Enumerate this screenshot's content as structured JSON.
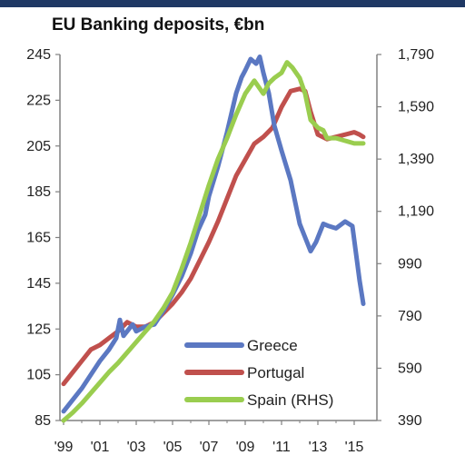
{
  "title": "EU Banking deposits, €bn",
  "colors": {
    "header_bar": "#1f3864",
    "greece": "#5b78c2",
    "portugal": "#c0504d",
    "spain": "#9acd4f",
    "axis": "#808080"
  },
  "chart_data": {
    "type": "line",
    "title": "EU Banking deposits, €bn",
    "xlabel": "",
    "ylabel": "",
    "ylabel_right": "",
    "grid": false,
    "legend_position": "bottom-center",
    "xlim": [
      1999,
      2016.3
    ],
    "ylim": [
      85,
      245
    ],
    "ylim_right": [
      390,
      1790
    ],
    "x_tick_labels": [
      "'99",
      "'01",
      "'03",
      "'05",
      "'07",
      "'09",
      "'11",
      "'13",
      "'15"
    ],
    "x_tick_values": [
      1999,
      2001,
      2003,
      2005,
      2007,
      2009,
      2011,
      2013,
      2015
    ],
    "y_left_ticks": [
      "245",
      "225",
      "205",
      "185",
      "165",
      "145",
      "125",
      "105",
      "85"
    ],
    "y_right_ticks": [
      "1,790",
      "1,590",
      "1,390",
      "1,190",
      "990",
      "790",
      "590",
      "390"
    ],
    "series": [
      {
        "name": "Greece",
        "axis": "left",
        "color": "#5b78c2",
        "points": [
          [
            1999.0,
            89
          ],
          [
            1999.5,
            94
          ],
          [
            2000.0,
            99
          ],
          [
            2000.5,
            105
          ],
          [
            2001.0,
            111
          ],
          [
            2001.5,
            116
          ],
          [
            2001.9,
            121
          ],
          [
            2002.1,
            129
          ],
          [
            2002.3,
            122
          ],
          [
            2002.8,
            127
          ],
          [
            2003.0,
            124
          ],
          [
            2003.5,
            126
          ],
          [
            2004.0,
            127
          ],
          [
            2004.5,
            133
          ],
          [
            2005.0,
            140
          ],
          [
            2005.5,
            148
          ],
          [
            2006.0,
            158
          ],
          [
            2006.4,
            168
          ],
          [
            2006.8,
            175
          ],
          [
            2007.0,
            183
          ],
          [
            2007.5,
            196
          ],
          [
            2008.0,
            211
          ],
          [
            2008.5,
            228
          ],
          [
            2008.8,
            235
          ],
          [
            2009.0,
            238
          ],
          [
            2009.3,
            243
          ],
          [
            2009.6,
            241
          ],
          [
            2009.8,
            244
          ],
          [
            2010.0,
            237
          ],
          [
            2010.3,
            228
          ],
          [
            2010.6,
            214
          ],
          [
            2011.0,
            203
          ],
          [
            2011.5,
            190
          ],
          [
            2012.0,
            171
          ],
          [
            2012.3,
            165
          ],
          [
            2012.6,
            159
          ],
          [
            2012.9,
            163
          ],
          [
            2013.3,
            171
          ],
          [
            2013.6,
            170
          ],
          [
            2014.0,
            169
          ],
          [
            2014.5,
            172
          ],
          [
            2014.9,
            170
          ],
          [
            2015.1,
            158
          ],
          [
            2015.3,
            146
          ],
          [
            2015.5,
            136
          ]
        ]
      },
      {
        "name": "Portugal",
        "axis": "left",
        "color": "#c0504d",
        "points": [
          [
            1999.0,
            101
          ],
          [
            1999.5,
            106
          ],
          [
            2000.0,
            111
          ],
          [
            2000.5,
            116
          ],
          [
            2001.0,
            118
          ],
          [
            2001.5,
            121
          ],
          [
            2002.0,
            124
          ],
          [
            2002.5,
            128
          ],
          [
            2003.0,
            126
          ],
          [
            2003.5,
            126
          ],
          [
            2004.0,
            128
          ],
          [
            2004.5,
            132
          ],
          [
            2005.0,
            136
          ],
          [
            2005.5,
            141
          ],
          [
            2006.0,
            147
          ],
          [
            2006.5,
            155
          ],
          [
            2007.0,
            163
          ],
          [
            2007.5,
            172
          ],
          [
            2008.0,
            182
          ],
          [
            2008.5,
            192
          ],
          [
            2009.0,
            199
          ],
          [
            2009.5,
            206
          ],
          [
            2010.0,
            209
          ],
          [
            2010.5,
            213
          ],
          [
            2011.0,
            222
          ],
          [
            2011.5,
            229
          ],
          [
            2012.0,
            230
          ],
          [
            2012.3,
            229
          ],
          [
            2012.6,
            220
          ],
          [
            2013.0,
            210
          ],
          [
            2013.5,
            208
          ],
          [
            2014.0,
            209
          ],
          [
            2014.5,
            210
          ],
          [
            2015.0,
            211
          ],
          [
            2015.3,
            210
          ],
          [
            2015.5,
            209
          ]
        ]
      },
      {
        "name": "Spain (RHS)",
        "axis": "right",
        "color": "#9acd4f",
        "points": [
          [
            1999.0,
            390
          ],
          [
            1999.5,
            420
          ],
          [
            2000.0,
            455
          ],
          [
            2000.5,
            495
          ],
          [
            2001.0,
            535
          ],
          [
            2001.5,
            575
          ],
          [
            2002.0,
            610
          ],
          [
            2002.5,
            650
          ],
          [
            2003.0,
            690
          ],
          [
            2003.5,
            730
          ],
          [
            2004.0,
            770
          ],
          [
            2004.5,
            820
          ],
          [
            2005.0,
            880
          ],
          [
            2005.5,
            970
          ],
          [
            2006.0,
            1070
          ],
          [
            2006.5,
            1180
          ],
          [
            2007.0,
            1290
          ],
          [
            2007.5,
            1390
          ],
          [
            2008.0,
            1470
          ],
          [
            2008.5,
            1560
          ],
          [
            2009.0,
            1640
          ],
          [
            2009.5,
            1690
          ],
          [
            2009.8,
            1660
          ],
          [
            2010.0,
            1640
          ],
          [
            2010.3,
            1680
          ],
          [
            2010.6,
            1700
          ],
          [
            2011.0,
            1720
          ],
          [
            2011.3,
            1760
          ],
          [
            2011.6,
            1740
          ],
          [
            2012.0,
            1700
          ],
          [
            2012.3,
            1640
          ],
          [
            2012.6,
            1540
          ],
          [
            2013.0,
            1510
          ],
          [
            2013.3,
            1500
          ],
          [
            2013.5,
            1470
          ],
          [
            2014.0,
            1470
          ],
          [
            2014.5,
            1460
          ],
          [
            2015.0,
            1450
          ],
          [
            2015.5,
            1450
          ]
        ]
      }
    ]
  }
}
